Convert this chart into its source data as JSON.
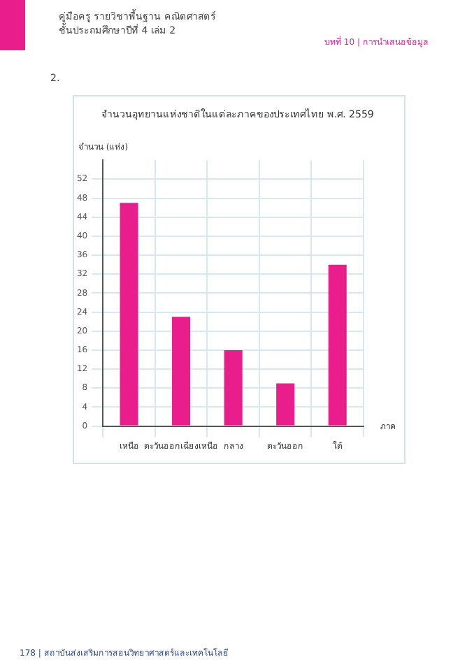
{
  "chart_data": {
    "type": "bar",
    "title": "จำนวนอุทยานแห่งชาติในแต่ละภาคของประเทศไทย พ.ศ. 2559",
    "ylabel": "จำนวน (แห่ง)",
    "xlabel": "ภาค",
    "categories": [
      "เหนือ",
      "ตะวันออกเฉียงเหนือ",
      "กลาง",
      "ตะวันออก",
      "ใต้"
    ],
    "values": [
      47,
      23,
      16,
      9,
      34
    ],
    "color": "#e91e8c",
    "ylim": [
      0,
      56
    ],
    "yticks": [
      0,
      4,
      8,
      12,
      16,
      20,
      24,
      28,
      32,
      36,
      40,
      44,
      48,
      52
    ],
    "grid": true,
    "annotations": [
      "คู่มือครู รายวิชาพื้นฐาน คณิตศาสตร์",
      "ชั้นประถมศึกษาปีที่ 4 เล่ม 2",
      "บทที่ 10 | การนำเสนอข้อมูล",
      "2.",
      "178 | สถาบันส่งเสริมการสอนวิทยาศาสตร์และเทคโนโลยี"
    ]
  }
}
